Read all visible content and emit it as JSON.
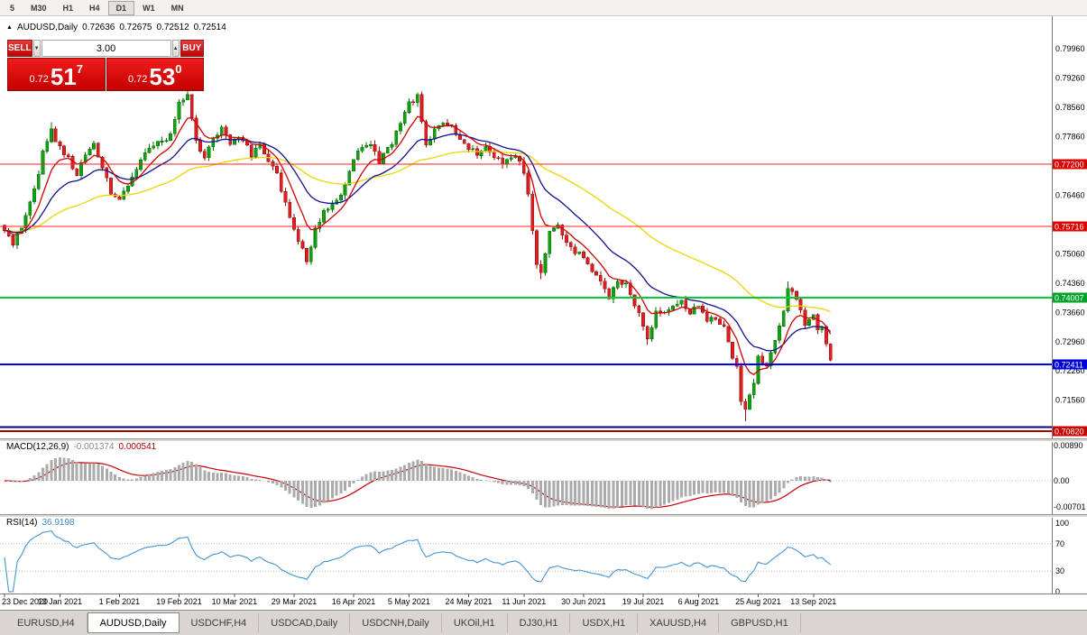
{
  "toolbar": {
    "timeframes": [
      "5",
      "M30",
      "H1",
      "H4",
      "D1",
      "W1",
      "MN"
    ],
    "active": "D1"
  },
  "icons": {
    "symbol_marker": "▲",
    "volume_down": "▼",
    "volume_up": "▲"
  },
  "chart_header": {
    "symbol": "AUDUSD,Daily",
    "open": "0.72636",
    "high": "0.72675",
    "low": "0.72512",
    "close": "0.72514"
  },
  "trade_panel": {
    "sell_label": "SELL",
    "buy_label": "BUY",
    "volume": "3.00",
    "sell_price": {
      "prefix": "0.72",
      "big": "51",
      "sup": "7"
    },
    "buy_price": {
      "prefix": "0.72",
      "big": "53",
      "sup": "0"
    }
  },
  "tabs": {
    "items": [
      {
        "label": "EURUSD,H4",
        "active": false
      },
      {
        "label": "AUDUSD,Daily",
        "active": true
      },
      {
        "label": "USDCHF,H4",
        "active": false
      },
      {
        "label": "USDCAD,Daily",
        "active": false
      },
      {
        "label": "USDCNH,Daily",
        "active": false
      },
      {
        "label": "UKOil,H1",
        "active": false
      },
      {
        "label": "DJ30,H1",
        "active": false
      },
      {
        "label": "USDX,H1",
        "active": false
      },
      {
        "label": "XAUUSD,H4",
        "active": false
      },
      {
        "label": "GBPUSD,H1",
        "active": false
      }
    ]
  },
  "chart_data": {
    "type": "candlestick",
    "symbol": "AUDUSD",
    "timeframe": "Daily",
    "ohlc_current": {
      "open": 0.72636,
      "high": 0.72675,
      "low": 0.72512,
      "close": 0.72514
    },
    "y_axis_range": [
      0.7065,
      0.8073
    ],
    "y_axis_ticks": [
      "0.79960",
      "0.79260",
      "0.78560",
      "0.77860",
      "0.76460",
      "0.75060",
      "0.74360",
      "0.73660",
      "0.72960",
      "0.72260",
      "0.71560"
    ],
    "levels": [
      {
        "price": 0.772,
        "label": "0.77200",
        "color": "#ff2222",
        "badge": "#e00000",
        "width": 1
      },
      {
        "price": 0.75716,
        "label": "0.75716",
        "color": "#ff2222",
        "badge": "#e00000",
        "width": 1
      },
      {
        "price": 0.74007,
        "label": "0.74007",
        "color": "#00cc33",
        "badge": "#00a22a",
        "width": 2
      },
      {
        "price": 0.72411,
        "label": "0.72411",
        "color": "#0000ee",
        "badge": "#0000d8",
        "width": 2
      },
      {
        "price": 0.7092,
        "label": "",
        "color": "#000080",
        "badge": null,
        "width": 2
      },
      {
        "price": 0.7082,
        "label": "0.70820",
        "color": "#aa0000",
        "badge": "#cc0000",
        "width": 2
      }
    ],
    "x_axis": [
      {
        "bar": 0,
        "label": "23 Dec 2020"
      },
      {
        "bar": 13,
        "label": "13 Jan 2021"
      },
      {
        "bar": 27,
        "label": "1 Feb 2021"
      },
      {
        "bar": 41,
        "label": "19 Feb 2021"
      },
      {
        "bar": 54,
        "label": "10 Mar 2021"
      },
      {
        "bar": 68,
        "label": "29 Mar 2021"
      },
      {
        "bar": 82,
        "label": "16 Apr 2021"
      },
      {
        "bar": 95,
        "label": "5 May 2021"
      },
      {
        "bar": 109,
        "label": "24 May 2021"
      },
      {
        "bar": 122,
        "label": "11 Jun 2021"
      },
      {
        "bar": 136,
        "label": "30 Jun 2021"
      },
      {
        "bar": 150,
        "label": "19 Jul 2021"
      },
      {
        "bar": 163,
        "label": "6 Aug 2021"
      },
      {
        "bar": 177,
        "label": "25 Aug 2021"
      },
      {
        "bar": 190,
        "label": "13 Sep 2021"
      }
    ],
    "price_anchors": [
      [
        0,
        0.756
      ],
      [
        2,
        0.7525
      ],
      [
        4,
        0.757
      ],
      [
        7,
        0.766
      ],
      [
        9,
        0.7745
      ],
      [
        11,
        0.7802
      ],
      [
        13,
        0.776
      ],
      [
        15,
        0.7732
      ],
      [
        17,
        0.7695
      ],
      [
        19,
        0.774
      ],
      [
        21,
        0.7768
      ],
      [
        23,
        0.7705
      ],
      [
        25,
        0.7655
      ],
      [
        27,
        0.7635
      ],
      [
        29,
        0.7672
      ],
      [
        31,
        0.7705
      ],
      [
        33,
        0.7742
      ],
      [
        35,
        0.7762
      ],
      [
        37,
        0.7775
      ],
      [
        39,
        0.7792
      ],
      [
        41,
        0.7868
      ],
      [
        43,
        0.7888
      ],
      [
        44,
        0.783
      ],
      [
        45,
        0.7772
      ],
      [
        47,
        0.774
      ],
      [
        49,
        0.7782
      ],
      [
        51,
        0.7806
      ],
      [
        53,
        0.7762
      ],
      [
        54,
        0.7772
      ],
      [
        56,
        0.7782
      ],
      [
        58,
        0.7742
      ],
      [
        60,
        0.7762
      ],
      [
        62,
        0.7732
      ],
      [
        64,
        0.77
      ],
      [
        66,
        0.7622
      ],
      [
        68,
        0.7562
      ],
      [
        70,
        0.7512
      ],
      [
        71,
        0.7482
      ],
      [
        73,
        0.756
      ],
      [
        75,
        0.7602
      ],
      [
        77,
        0.7622
      ],
      [
        79,
        0.7652
      ],
      [
        81,
        0.7702
      ],
      [
        82,
        0.7735
      ],
      [
        84,
        0.7762
      ],
      [
        86,
        0.7772
      ],
      [
        88,
        0.7722
      ],
      [
        90,
        0.7756
      ],
      [
        92,
        0.7792
      ],
      [
        94,
        0.7842
      ],
      [
        95,
        0.7862
      ],
      [
        97,
        0.7882
      ],
      [
        98,
        0.7822
      ],
      [
        99,
        0.7772
      ],
      [
        101,
        0.7802
      ],
      [
        103,
        0.7826
      ],
      [
        105,
        0.7812
      ],
      [
        107,
        0.7782
      ],
      [
        109,
        0.7762
      ],
      [
        111,
        0.7746
      ],
      [
        113,
        0.7762
      ],
      [
        115,
        0.7742
      ],
      [
        117,
        0.7722
      ],
      [
        119,
        0.7742
      ],
      [
        121,
        0.7722
      ],
      [
        122,
        0.7706
      ],
      [
        123,
        0.7652
      ],
      [
        124,
        0.7562
      ],
      [
        125,
        0.7482
      ],
      [
        126,
        0.7462
      ],
      [
        128,
        0.7562
      ],
      [
        130,
        0.7582
      ],
      [
        132,
        0.7532
      ],
      [
        134,
        0.7512
      ],
      [
        136,
        0.75
      ],
      [
        138,
        0.7462
      ],
      [
        140,
        0.7442
      ],
      [
        142,
        0.7402
      ],
      [
        144,
        0.7445
      ],
      [
        146,
        0.7432
      ],
      [
        148,
        0.7382
      ],
      [
        150,
        0.7334
      ],
      [
        151,
        0.7306
      ],
      [
        153,
        0.7362
      ],
      [
        155,
        0.7366
      ],
      [
        157,
        0.7382
      ],
      [
        159,
        0.74
      ],
      [
        161,
        0.7362
      ],
      [
        163,
        0.7386
      ],
      [
        165,
        0.7342
      ],
      [
        167,
        0.7356
      ],
      [
        169,
        0.733
      ],
      [
        171,
        0.7262
      ],
      [
        172,
        0.7232
      ],
      [
        173,
        0.7146
      ],
      [
        174,
        0.7132
      ],
      [
        176,
        0.72
      ],
      [
        177,
        0.7256
      ],
      [
        179,
        0.7242
      ],
      [
        181,
        0.7302
      ],
      [
        183,
        0.7372
      ],
      [
        184,
        0.743
      ],
      [
        186,
        0.7392
      ],
      [
        188,
        0.7342
      ],
      [
        190,
        0.7366
      ],
      [
        191,
        0.7324
      ],
      [
        192,
        0.7336
      ],
      [
        193,
        0.7294
      ],
      [
        194,
        0.7251
      ]
    ],
    "forced_wicks": [
      {
        "bar": 11,
        "high": 0.782
      },
      {
        "bar": 43,
        "high": 0.7902
      },
      {
        "bar": 97,
        "high": 0.7891
      },
      {
        "bar": 126,
        "low": 0.7445
      },
      {
        "bar": 151,
        "low": 0.7289
      },
      {
        "bar": 174,
        "low": 0.7106
      },
      {
        "bar": 184,
        "high": 0.744
      }
    ],
    "moving_averages": [
      {
        "period": 55,
        "color": "#efd400"
      },
      {
        "period": 20,
        "color": "#101090"
      },
      {
        "period": 8,
        "color": "#d40000"
      }
    ],
    "colors": {
      "bull": "#12a112",
      "bull_edge": "#0a720a",
      "bear": "#e02020",
      "bear_edge": "#9c0f0f"
    },
    "macd": {
      "title": "MACD(12,26,9)",
      "value_main": "-0.001374",
      "value_signal": "0.000541",
      "axis": [
        "0.00890",
        "0.00",
        "-0.00701"
      ],
      "fast": 12,
      "slow": 26,
      "signal": 9,
      "hist_color": "#ababab",
      "line_color": "#c40000"
    },
    "rsi": {
      "title": "RSI(14)",
      "value": "36.9198",
      "axis": [
        "100",
        "70",
        "30",
        "0"
      ],
      "levels": [
        70,
        30
      ],
      "period": 14,
      "line_color": "#4394d6"
    }
  }
}
